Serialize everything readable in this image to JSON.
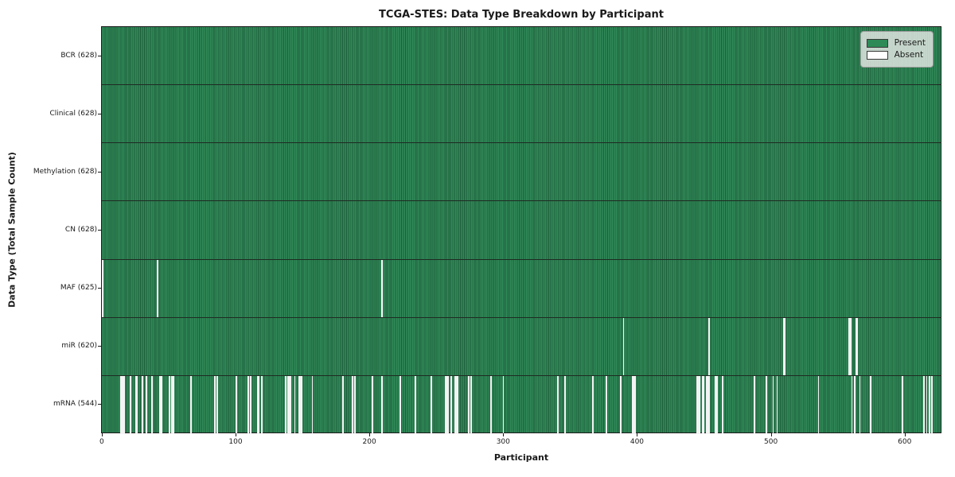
{
  "chart_data": {
    "type": "heatmap",
    "title": "TCGA-STES: Data Type Breakdown by Participant",
    "xlabel": "Participant",
    "ylabel": "Data Type (Total Sample Count)",
    "legend_position": "upper right",
    "legend": [
      {
        "label": "Present",
        "color": "#2e8b57"
      },
      {
        "label": "Absent",
        "color": "#ffffff"
      }
    ],
    "x_ticks": [
      0,
      100,
      200,
      300,
      400,
      500,
      600
    ],
    "n_participants": 628,
    "xlim": [
      -0.5,
      627.5
    ],
    "grid": false,
    "rows": [
      {
        "label": "BCR (628)",
        "data_type": "BCR",
        "present_count": 628,
        "absent_participants": []
      },
      {
        "label": "Clinical (628)",
        "data_type": "Clinical",
        "present_count": 628,
        "absent_participants": []
      },
      {
        "label": "Methylation (628)",
        "data_type": "Methylation",
        "present_count": 628,
        "absent_participants": []
      },
      {
        "label": "CN (628)",
        "data_type": "CN",
        "present_count": 628,
        "absent_participants": []
      },
      {
        "label": "MAF (625)",
        "data_type": "MAF",
        "present_count": 625,
        "absent_participants": [
          0,
          41,
          209
        ]
      },
      {
        "label": "miR (620)",
        "data_type": "miR",
        "present_count": 620,
        "absent_participants": [
          390,
          454,
          510,
          511,
          559,
          560,
          564,
          565
        ]
      },
      {
        "label": "mRNA (544)",
        "data_type": "mRNA",
        "present_count": 544,
        "absent_participants": [
          14,
          15,
          16,
          21,
          25,
          26,
          30,
          33,
          37,
          43,
          44,
          50,
          52,
          53,
          66,
          84,
          86,
          100,
          109,
          111,
          116,
          117,
          119,
          137,
          139,
          140,
          141,
          144,
          147,
          148,
          149,
          157,
          180,
          187,
          189,
          202,
          209,
          223,
          234,
          246,
          257,
          258,
          259,
          261,
          264,
          265,
          266,
          274,
          276,
          291,
          300,
          341,
          346,
          367,
          377,
          388,
          397,
          398,
          399,
          445,
          446,
          447,
          449,
          450,
          452,
          453,
          454,
          459,
          460,
          464,
          488,
          497,
          502,
          505,
          536,
          561,
          563,
          567,
          575,
          599,
          615,
          617,
          619,
          621
        ]
      }
    ],
    "style": {
      "present_color": "#2e8b57",
      "present_edge_color": "#1f5c3a",
      "absent_color": "#f4f4f4",
      "row_separator_color": "#1f2a22",
      "axes_edge_color": "#1a1a1a",
      "figure_background": "#ffffff",
      "legend_background": "#ebebeb"
    }
  }
}
